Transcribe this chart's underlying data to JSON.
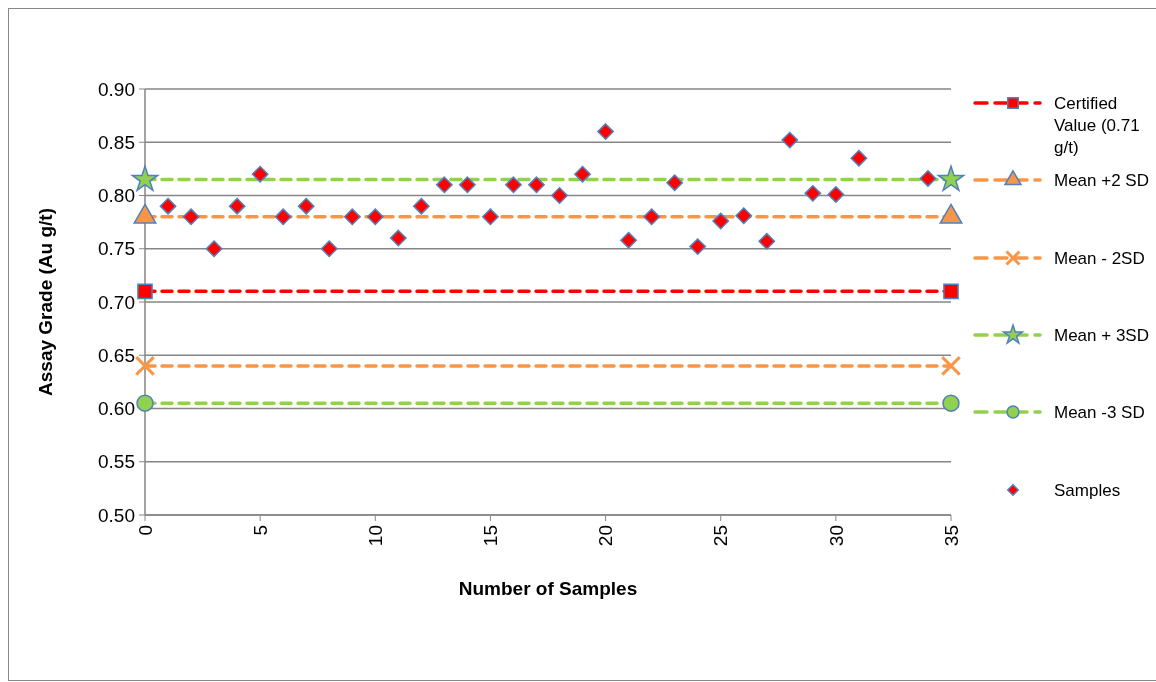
{
  "chart_data": {
    "type": "scatter",
    "xlabel": "Number of Samples",
    "ylabel": "Assay Grade (Au g/t)",
    "xlim": [
      0,
      35
    ],
    "xticks": [
      0,
      5,
      10,
      15,
      20,
      25,
      30,
      35
    ],
    "ylim": [
      0.5,
      0.9
    ],
    "yticks": [
      {
        "value": 0.5,
        "label": "0.50"
      },
      {
        "value": 0.55,
        "label": "0.55"
      },
      {
        "value": 0.6,
        "label": "0.60"
      },
      {
        "value": 0.65,
        "label": "0.65"
      },
      {
        "value": 0.7,
        "label": "0.70"
      },
      {
        "value": 0.75,
        "label": "0.75"
      },
      {
        "value": 0.8,
        "label": "0.80"
      },
      {
        "value": 0.85,
        "label": "0.85"
      },
      {
        "value": 0.9,
        "label": "0.90"
      }
    ],
    "grid": "y",
    "legend": "right",
    "series": [
      {
        "name": "Certified Value (0.71 g/t)",
        "type": "line",
        "color": "#ff0000",
        "marker": "square",
        "line_style": "dashed",
        "x": [
          0,
          35
        ],
        "values": [
          0.71,
          0.71
        ]
      },
      {
        "name": "Mean +2 SD",
        "type": "line",
        "color": "#f79646",
        "marker": "triangle",
        "line_style": "dashed",
        "x": [
          0,
          35
        ],
        "values": [
          0.78,
          0.78
        ]
      },
      {
        "name": "Mean - 2SD",
        "type": "line",
        "color": "#f79646",
        "marker": "cross",
        "line_style": "dashed",
        "x": [
          0,
          35
        ],
        "values": [
          0.64,
          0.64
        ]
      },
      {
        "name": "Mean + 3SD",
        "type": "line",
        "color": "#92d050",
        "marker": "star",
        "line_style": "dashed",
        "x": [
          0,
          35
        ],
        "values": [
          0.815,
          0.815
        ]
      },
      {
        "name": "Mean -3 SD",
        "type": "line",
        "color": "#92d050",
        "marker": "circle",
        "line_style": "dashed",
        "x": [
          0,
          35
        ],
        "values": [
          0.605,
          0.605
        ]
      },
      {
        "name": "Samples",
        "color": "#ff0000",
        "marker": "diamond",
        "x": [
          1,
          2,
          3,
          4,
          5,
          6,
          7,
          8,
          9,
          10,
          11,
          12,
          13,
          14,
          15,
          16,
          17,
          18,
          19,
          20,
          21,
          22,
          23,
          24,
          25,
          26,
          27,
          28,
          29,
          30,
          31,
          34
        ],
        "values": [
          0.79,
          0.78,
          0.75,
          0.79,
          0.82,
          0.78,
          0.79,
          0.75,
          0.78,
          0.78,
          0.76,
          0.79,
          0.81,
          0.81,
          0.78,
          0.81,
          0.81,
          0.8,
          0.82,
          0.86,
          0.758,
          0.78,
          0.812,
          0.752,
          0.776,
          0.781,
          0.757,
          0.852,
          0.802,
          0.801,
          0.835,
          0.816
        ]
      }
    ]
  }
}
